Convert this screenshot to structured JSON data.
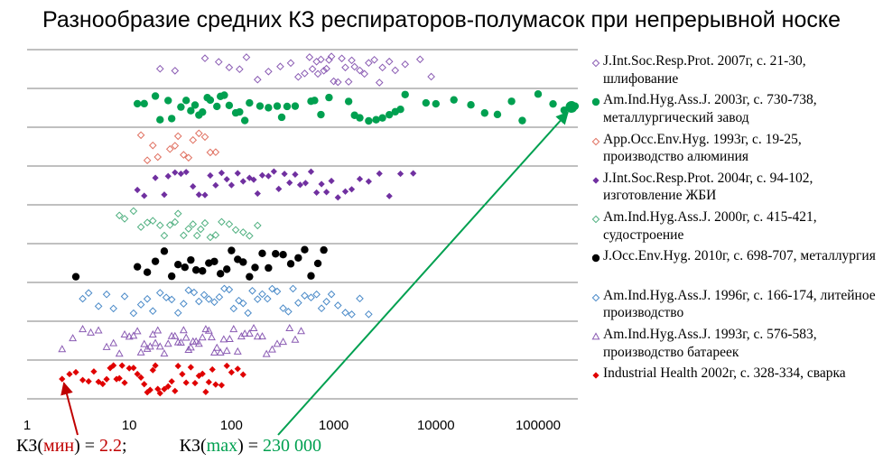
{
  "chart_data": {
    "type": "scatter",
    "title": "Разнообразие средних КЗ респираторов-полумасок при непрерывной носке",
    "x_scale": "log",
    "xlim": [
      1,
      300000
    ],
    "x_ticks": [
      "1",
      "10",
      "100",
      "1000",
      "10000",
      "100000"
    ],
    "x_tick_values": [
      1,
      10,
      100,
      1000,
      10000,
      100000
    ],
    "grid": "horizontal",
    "legend_position": "right",
    "series": [
      {
        "name": "J.Int.Soc.Resp.Prot. 2007г, с. 21-30, шлифование",
        "marker": "diamond-open",
        "color": "#8a5bb3",
        "values": [
          20,
          28,
          55,
          75,
          95,
          120,
          140,
          180,
          230,
          300,
          380,
          450,
          520,
          580,
          620,
          680,
          700,
          750,
          800,
          850,
          900,
          950,
          1000,
          1100,
          1200,
          1300,
          1400,
          1500,
          1600,
          1800,
          2000,
          2200,
          2500,
          2800,
          3000,
          3500,
          4000,
          5000,
          7000,
          9000
        ]
      },
      {
        "name": "Am.Ind.Hyg.Ass.J. 2003г, с. 730-738, металлургический завод",
        "marker": "circle",
        "color": "#00a050",
        "values": [
          12,
          14,
          18,
          20,
          24,
          26,
          32,
          36,
          40,
          44,
          48,
          52,
          58,
          62,
          72,
          78,
          85,
          95,
          110,
          120,
          135,
          150,
          190,
          230,
          280,
          310,
          350,
          420,
          600,
          650,
          750,
          900,
          1400,
          1600,
          1800,
          2200,
          2600,
          3000,
          3500,
          4000,
          4500,
          5000,
          8000,
          10000,
          15000,
          22000,
          30000,
          40000,
          55000,
          70000,
          100000,
          140000,
          180000,
          230000
        ]
      },
      {
        "name": "App.Occ.Env.Hyg. 1993г, с. 19-25, производство алюминия",
        "marker": "diamond-open",
        "color": "#e07060",
        "values": [
          13,
          15,
          17,
          19,
          25,
          28,
          30,
          34,
          38,
          42,
          48,
          55,
          62,
          70
        ]
      },
      {
        "name": "J.Int.Soc.Resp.Prot. 2004г, с. 94-102, изготовление ЖБИ",
        "marker": "diamond",
        "color": "#7030a0",
        "values": [
          12,
          14,
          18,
          22,
          24,
          28,
          32,
          36,
          42,
          48,
          55,
          62,
          70,
          80,
          90,
          100,
          115,
          130,
          150,
          165,
          180,
          200,
          230,
          260,
          290,
          330,
          370,
          420,
          470,
          530,
          600,
          680,
          760,
          850,
          950,
          1100,
          1300,
          1500,
          1800,
          2200,
          2800,
          3500,
          4500,
          6000
        ]
      },
      {
        "name": "Am.Ind.Hyg.Ass.J. 2000г, с. 415-421, судостроение",
        "marker": "diamond-open",
        "color": "#50b080",
        "values": [
          8,
          9,
          11,
          13,
          15,
          17,
          20,
          22,
          25,
          28,
          30,
          34,
          38,
          42,
          46,
          50,
          55,
          62,
          70,
          80,
          95,
          110,
          130,
          150,
          180
        ]
      },
      {
        "name": "J.Occ.Env.Hyg. 2010г, с. 698-707, металлургия",
        "marker": "circle",
        "color": "#000000",
        "values": [
          3,
          12,
          15,
          18,
          22,
          26,
          30,
          35,
          40,
          45,
          52,
          60,
          68,
          78,
          90,
          100,
          115,
          130,
          150,
          170,
          200,
          230,
          270,
          320,
          380,
          450,
          520,
          600,
          700,
          800
        ]
      },
      {
        "name": "Am.Ind.Hyg.Ass.J. 1996г, с. 166-174, литейное производство",
        "marker": "diamond-open",
        "color": "#4a8ac8",
        "values": [
          3.5,
          4,
          5,
          6,
          7,
          9,
          11,
          13,
          15,
          17,
          20,
          23,
          26,
          30,
          34,
          38,
          43,
          48,
          54,
          60,
          68,
          76,
          85,
          95,
          105,
          118,
          130,
          145,
          160,
          180,
          200,
          225,
          250,
          280,
          320,
          360,
          400,
          450,
          520,
          600,
          680,
          760,
          850,
          950,
          1100,
          1300,
          1500,
          1800,
          2200
        ]
      },
      {
        "name": "Am.Ind.Hyg.Ass.J. 1993г, с. 576-583, производство батареек",
        "marker": "triangle-open",
        "color": "#8a5bb3",
        "values": [
          2.2,
          2.8,
          3.5,
          4.2,
          5,
          6,
          7,
          8,
          9,
          10,
          11,
          12,
          13,
          14,
          15,
          16,
          17,
          18,
          19,
          20,
          22,
          24,
          26,
          28,
          30,
          32,
          34,
          36,
          38,
          40,
          42,
          45,
          48,
          52,
          56,
          60,
          64,
          68,
          72,
          78,
          84,
          90,
          96,
          105,
          115,
          125,
          135,
          150,
          165,
          180,
          200,
          220,
          250,
          280,
          320,
          370,
          420,
          480
        ]
      },
      {
        "name": "Industrial Health 2002г, с. 328-334, сварка",
        "marker": "diamond",
        "color": "#e00000",
        "values": [
          2.2,
          2.6,
          3,
          3.5,
          4,
          4.5,
          5,
          5.5,
          6,
          6.5,
          7,
          7.5,
          8,
          8.5,
          9,
          10,
          11,
          12,
          13,
          14,
          15,
          16,
          17,
          18,
          19,
          20,
          22,
          24,
          26,
          28,
          30,
          33,
          36,
          40,
          44,
          48,
          52,
          56,
          60,
          65,
          70,
          80,
          90,
          100,
          115,
          130
        ]
      }
    ],
    "annotations": [
      {
        "label": "min",
        "value": 2.2,
        "series_index": 8,
        "color": "#c00000"
      },
      {
        "label": "max",
        "value": 230000,
        "series_index": 1,
        "color": "#00a050"
      }
    ]
  },
  "footer": {
    "kz_min_prefix": "КЗ(",
    "kz_min_label": "мин",
    "kz_min_suffix": ") = ",
    "kz_min_value": "2.2",
    "kz_min_end": ";",
    "kz_max_prefix": "КЗ(",
    "kz_max_label": "max",
    "kz_max_suffix": ") = ",
    "kz_max_value": "230 000"
  },
  "colors": {
    "min_accent": "#c00000",
    "max_accent": "#00a050",
    "gridline": "#808080"
  }
}
